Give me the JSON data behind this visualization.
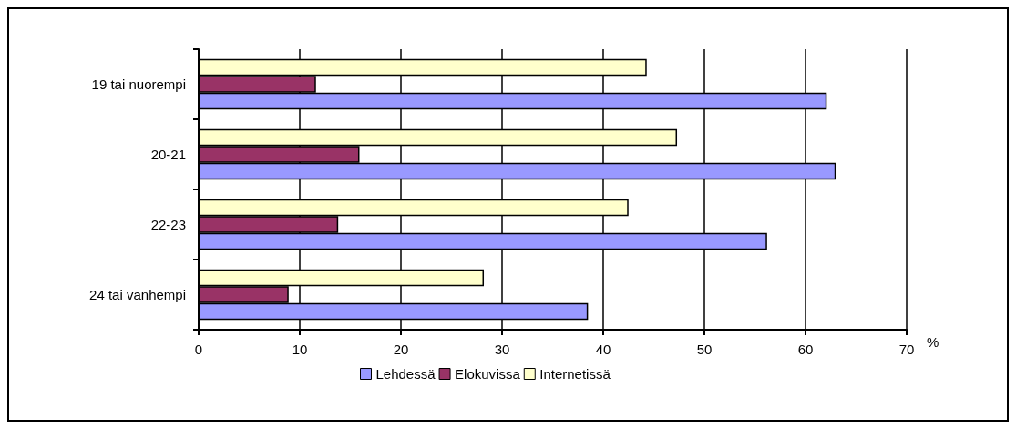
{
  "chart_data": {
    "type": "bar",
    "orientation": "horizontal",
    "categories": [
      "19 tai nuorempi",
      "20-21",
      "22-23",
      "24 tai vanhempi"
    ],
    "series": [
      {
        "name": "Lehdessä",
        "color": "#9999ff",
        "values": [
          62.1,
          63.0,
          56.2,
          38.5
        ]
      },
      {
        "name": "Elokuvissa",
        "color": "#993366",
        "values": [
          11.6,
          15.9,
          13.8,
          8.9
        ]
      },
      {
        "name": "Internetissä",
        "color": "#ffffcc",
        "values": [
          44.3,
          47.3,
          42.5,
          28.2
        ]
      }
    ],
    "xlabel": "%",
    "xlim": [
      0,
      70
    ],
    "xticks": [
      0,
      10,
      20,
      30,
      40,
      50,
      60,
      70
    ],
    "grid": "x",
    "legend": "bottom"
  }
}
